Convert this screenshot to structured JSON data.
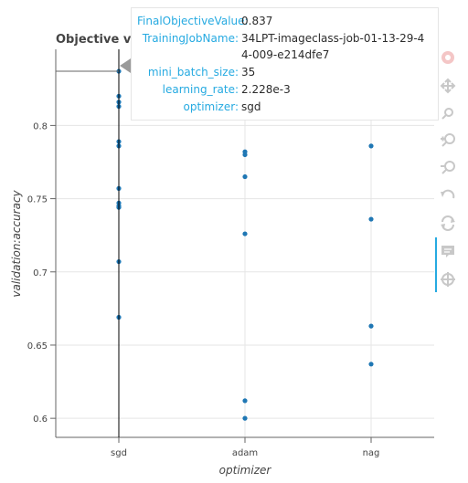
{
  "chart_data": {
    "type": "scatter",
    "title": "Objective vs",
    "xlabel": "optimizer",
    "ylabel": "validation:accuracy",
    "categories": [
      "sgd",
      "adam",
      "nag"
    ],
    "ylim": [
      0.587,
      0.852
    ],
    "yticks": [
      0.6,
      0.65,
      0.7,
      0.75,
      0.8
    ],
    "ytick_labels": [
      "0.6",
      "0.65",
      "0.7",
      "0.75",
      "0.8"
    ],
    "grid": true,
    "color": "#1f77b4",
    "points": [
      {
        "x": "sgd",
        "y": 0.837
      },
      {
        "x": "sgd",
        "y": 0.82
      },
      {
        "x": "sgd",
        "y": 0.816
      },
      {
        "x": "sgd",
        "y": 0.813
      },
      {
        "x": "sgd",
        "y": 0.789
      },
      {
        "x": "sgd",
        "y": 0.786
      },
      {
        "x": "sgd",
        "y": 0.757
      },
      {
        "x": "sgd",
        "y": 0.747
      },
      {
        "x": "sgd",
        "y": 0.745
      },
      {
        "x": "sgd",
        "y": 0.744
      },
      {
        "x": "sgd",
        "y": 0.707
      },
      {
        "x": "sgd",
        "y": 0.669
      },
      {
        "x": "adam",
        "y": 0.782
      },
      {
        "x": "adam",
        "y": 0.78
      },
      {
        "x": "adam",
        "y": 0.765
      },
      {
        "x": "adam",
        "y": 0.726
      },
      {
        "x": "adam",
        "y": 0.612
      },
      {
        "x": "adam",
        "y": 0.6
      },
      {
        "x": "nag",
        "y": 0.786
      },
      {
        "x": "nag",
        "y": 0.736
      },
      {
        "x": "nag",
        "y": 0.663
      },
      {
        "x": "nag",
        "y": 0.637
      }
    ],
    "hover": {
      "x": "sgd",
      "y": 0.837
    }
  },
  "tooltip": {
    "rows": [
      {
        "key": "FinalObjectiveValue:",
        "value": "0.837"
      },
      {
        "key": "TrainingJobName:",
        "value": "34LPT-imageclass-job-01-13-29-44-009-e214dfe7"
      },
      {
        "key": "mini_batch_size:",
        "value": "35"
      },
      {
        "key": "learning_rate:",
        "value": "2.228e-3"
      },
      {
        "key": "optimizer:",
        "value": "sgd"
      }
    ]
  },
  "toolbar": {
    "tools": [
      {
        "icon": "bokeh-logo-icon"
      },
      {
        "icon": "pan-icon"
      },
      {
        "icon": "box-zoom-icon"
      },
      {
        "icon": "zoom-in-icon"
      },
      {
        "icon": "zoom-out-icon"
      },
      {
        "icon": "undo-icon"
      },
      {
        "icon": "reset-icon"
      },
      {
        "icon": "hover-icon"
      },
      {
        "icon": "crosshair-icon"
      }
    ]
  }
}
